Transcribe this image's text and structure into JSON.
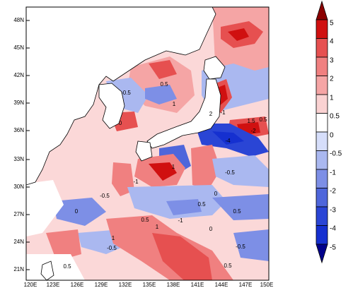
{
  "map": {
    "lat_labels": [
      "48N",
      "45N",
      "42N",
      "39N",
      "36N",
      "33N",
      "30N",
      "27N",
      "24N",
      "21N"
    ],
    "lon_labels": [
      "120E",
      "123E",
      "126E",
      "129E",
      "132E",
      "135E",
      "138E",
      "141E",
      "144E",
      "147E",
      "150E"
    ],
    "extent": {
      "lon": [
        120,
        150
      ],
      "lat": [
        20,
        50
      ]
    },
    "land_color": "#ffffff",
    "coast_color": "#000000",
    "contour_labels": [
      "0.5",
      "-0.5",
      "1",
      "0",
      "2",
      "-1",
      "1.5",
      "-4",
      "-2",
      "0.5",
      "-0.5",
      "1",
      "-1",
      "0",
      "0.5",
      "-0.5",
      "0",
      "0.5",
      "1",
      "-1",
      "0.5",
      "1",
      "-0.5",
      "0.5",
      "0",
      "-0.5",
      "0.5"
    ]
  },
  "colorbar": {
    "levels": [
      "5",
      "4",
      "3",
      "2",
      "1",
      "0.5",
      "0",
      "-0.5",
      "-1",
      "-2",
      "-3",
      "-4",
      "-5"
    ],
    "colors": [
      "#d01010",
      "#e65050",
      "#f08080",
      "#f5a5a5",
      "#fad2d2",
      "#ffffff",
      "#d6defa",
      "#aab8f0",
      "#7d8fe6",
      "#4e66db",
      "#2a45d5",
      "#1530d0"
    ],
    "top_arrow_color": "#8b0000",
    "bottom_arrow_color": "#00008b"
  }
}
